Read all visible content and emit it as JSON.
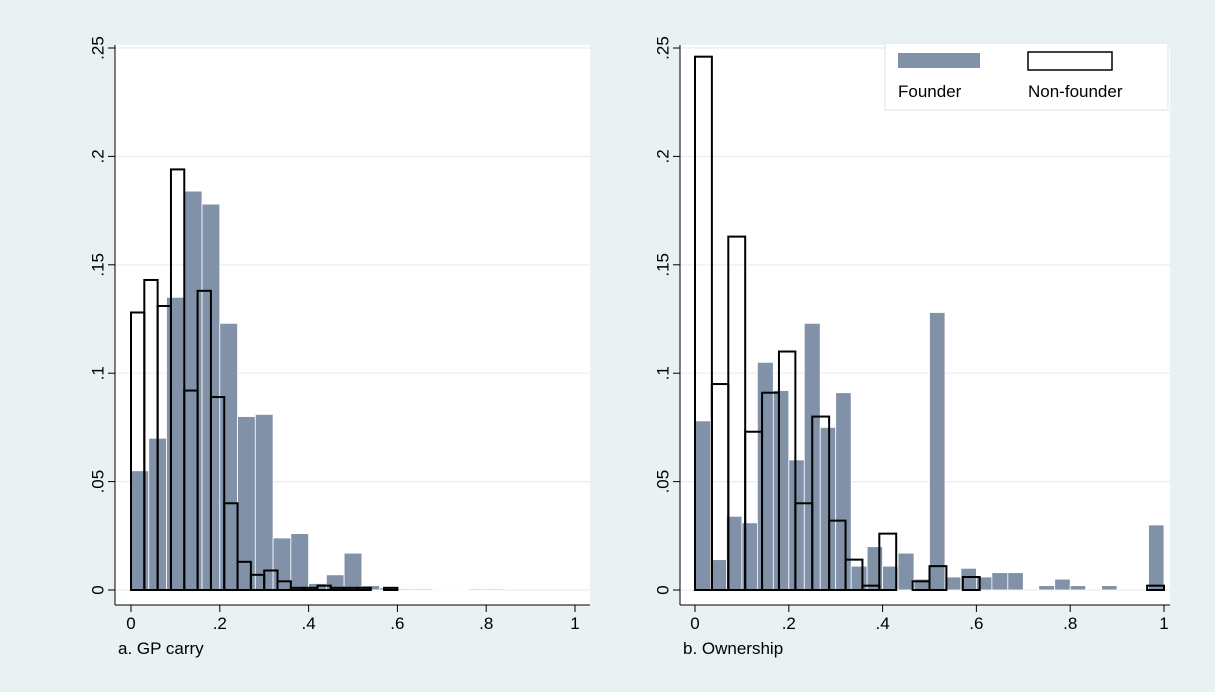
{
  "chart_data": [
    {
      "type": "histogram",
      "xlabel": "a. GP carry",
      "xlim": [
        0,
        1
      ],
      "ylim": [
        0,
        0.25
      ],
      "xticks": [
        0,
        {
          "value": 0.2,
          "label": ".2"
        },
        {
          "value": 0.4,
          "label": ".4"
        },
        {
          "value": 0.6,
          "label": ".6"
        },
        {
          "value": 0.8,
          "label": ".8"
        },
        1
      ],
      "yticks": [
        0,
        {
          "value": 0.05,
          "label": ".05"
        },
        {
          "value": 0.1,
          "label": ".1"
        },
        {
          "value": 0.15,
          "label": ".15"
        },
        {
          "value": 0.2,
          "label": ".2"
        },
        {
          "value": 0.25,
          "label": ".25"
        }
      ],
      "grid": true,
      "series": [
        {
          "color": "#8192a8",
          "style": "filled",
          "bins": [
            0,
            0.04,
            0.08,
            0.12,
            0.16,
            0.2,
            0.24,
            0.28,
            0.32,
            0.36,
            0.4,
            0.44,
            0.48,
            0.52,
            0.56,
            0.6,
            0.64,
            0.68,
            0.72,
            0.76,
            0.8,
            0.84,
            0.88,
            0.92,
            0.96,
            1
          ],
          "values": [
            0.055,
            0.07,
            0.135,
            0.184,
            0.178,
            0.123,
            0.08,
            0.081,
            0.024,
            0.026,
            0.003,
            0.007,
            0.017,
            0.002,
            0.001,
            0.0005,
            0.0005,
            0.0003,
            0.0003,
            0.0005,
            0.0005,
            0,
            0,
            0,
            0
          ]
        },
        {
          "color": "#000000",
          "style": "outline",
          "bins": [
            0,
            0.03,
            0.06,
            0.09,
            0.12,
            0.15,
            0.18,
            0.21,
            0.24,
            0.27,
            0.3,
            0.33,
            0.36,
            0.39,
            0.42,
            0.45,
            0.48,
            0.51,
            0.54,
            0.57,
            0.6
          ],
          "values": [
            0.128,
            0.143,
            0.131,
            0.194,
            0.092,
            0.138,
            0.089,
            0.04,
            0.013,
            0.007,
            0.009,
            0.004,
            0.001,
            0.001,
            0.002,
            0.001,
            0.001,
            0.001,
            0,
            0.001
          ]
        }
      ]
    },
    {
      "type": "histogram",
      "xlabel": "b. Ownership",
      "xlim": [
        0,
        1
      ],
      "ylim": [
        0,
        0.25
      ],
      "xticks": [
        0,
        {
          "value": 0.2,
          "label": ".2"
        },
        {
          "value": 0.4,
          "label": ".4"
        },
        {
          "value": 0.6,
          "label": ".6"
        },
        {
          "value": 0.8,
          "label": ".8"
        },
        1
      ],
      "yticks": [
        0,
        {
          "value": 0.05,
          "label": ".05"
        },
        {
          "value": 0.1,
          "label": ".1"
        },
        {
          "value": 0.15,
          "label": ".15"
        },
        {
          "value": 0.2,
          "label": ".2"
        },
        {
          "value": 0.25,
          "label": ".25"
        }
      ],
      "grid": true,
      "legend": "top-right",
      "series": [
        {
          "name": "Founder",
          "color": "#8192a8",
          "style": "filled",
          "bins": [
            0,
            0.033,
            0.067,
            0.1,
            0.133,
            0.167,
            0.2,
            0.233,
            0.267,
            0.3,
            0.333,
            0.367,
            0.4,
            0.433,
            0.467,
            0.5,
            0.533,
            0.567,
            0.6,
            0.633,
            0.667,
            0.7,
            0.733,
            0.767,
            0.8,
            0.833,
            0.867,
            0.9,
            0.933,
            0.967,
            1
          ],
          "values": [
            0.078,
            0.014,
            0.034,
            0.031,
            0.105,
            0.092,
            0.06,
            0.123,
            0.075,
            0.091,
            0.011,
            0.02,
            0.011,
            0.017,
            0.005,
            0.128,
            0.006,
            0.01,
            0.006,
            0.008,
            0.008,
            0,
            0.002,
            0.005,
            0.002,
            0,
            0.002,
            0,
            0,
            0.03
          ]
        },
        {
          "name": "Non-founder",
          "color": "#000000",
          "style": "outline",
          "bins": [
            0,
            0.036,
            0.071,
            0.107,
            0.143,
            0.179,
            0.214,
            0.25,
            0.286,
            0.321,
            0.357,
            0.393,
            0.429,
            0.464,
            0.5,
            0.536,
            0.571,
            0.607,
            0.643,
            0.679,
            0.714,
            0.75,
            0.786,
            0.821,
            0.857,
            0.893,
            0.929,
            0.964,
            1
          ],
          "values": [
            0.246,
            0.095,
            0.163,
            0.073,
            0.091,
            0.11,
            0.04,
            0.08,
            0.032,
            0.014,
            0.002,
            0.026,
            0,
            0.004,
            0.011,
            0,
            0.006,
            0,
            0,
            0,
            0,
            0,
            0,
            0,
            0,
            0,
            0,
            0.002
          ]
        }
      ]
    }
  ]
}
